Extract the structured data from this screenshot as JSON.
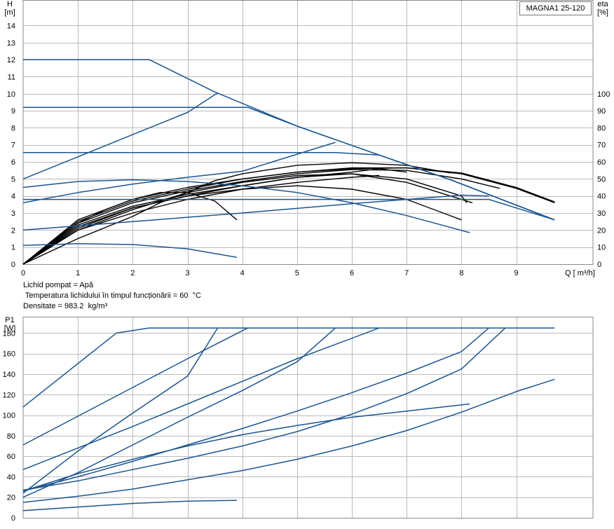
{
  "model": "MAGNA1 25-120",
  "fluid": {
    "line1": "Lichid pompat = Apă",
    "line2": " Temperatura lichidului în timpul funcționării = 60  °C",
    "line3": "Densitate = 983.2  kg/m³"
  },
  "colors": {
    "blue": "#1a5591",
    "black": "#000000",
    "grid": "#bbbbbb",
    "frame": "#8a8a8a"
  },
  "chart_data": [
    {
      "type": "line",
      "title": "MAGNA1 25-120",
      "x_label": "Q [ m³/h]",
      "y_label_left": "H\n[m]",
      "y_label_right": "eta\n[%]",
      "xlim": [
        0,
        10.4
      ],
      "ylim": [
        0,
        15.5
      ],
      "x_ticks": [
        0,
        1,
        2,
        3,
        4,
        5,
        6,
        7,
        8,
        9
      ],
      "y_ticks": [
        0,
        1,
        2,
        3,
        4,
        5,
        6,
        7,
        8,
        9,
        10,
        11,
        12,
        13,
        14
      ],
      "eta_ticks": [
        0,
        10,
        20,
        30,
        40,
        50,
        60,
        70,
        80,
        90,
        100
      ],
      "eta_scale_max_percent": 100,
      "eta_scale_max_height_m": 10,
      "head_series": [
        {
          "points": [
            [
              0,
              12
            ],
            [
              2.3,
              12
            ],
            [
              3.5,
              10.1
            ],
            [
              5.0,
              8.1
            ],
            [
              6.5,
              6.4
            ],
            [
              7.8,
              4.95
            ],
            [
              9.7,
              2.6
            ]
          ]
        },
        {
          "points": [
            [
              0,
              9.2
            ],
            [
              4.1,
              9.2
            ],
            [
              5.0,
              8.1
            ],
            [
              6.5,
              6.4
            ],
            [
              7.8,
              4.95
            ],
            [
              9.7,
              2.6
            ]
          ]
        },
        {
          "points": [
            [
              0,
              6.55
            ],
            [
              5.7,
              6.55
            ],
            [
              6.5,
              6.4
            ],
            [
              7.8,
              4.95
            ],
            [
              9.7,
              2.6
            ]
          ]
        },
        {
          "points": [
            [
              0,
              3.8
            ],
            [
              8.5,
              3.8
            ],
            [
              9.7,
              2.6
            ]
          ]
        },
        {
          "points": [
            [
              0,
              5.0
            ],
            [
              1.0,
              6.3
            ],
            [
              2.0,
              7.6
            ],
            [
              3.0,
              8.9
            ],
            [
              3.55,
              10.05
            ]
          ]
        },
        {
          "points": [
            [
              0,
              4.5
            ],
            [
              1.0,
              4.85
            ],
            [
              2.0,
              4.95
            ],
            [
              3.0,
              4.85
            ],
            [
              4.0,
              4.6
            ],
            [
              5.0,
              4.2
            ],
            [
              6.0,
              3.6
            ],
            [
              7.0,
              2.85
            ],
            [
              8.15,
              1.85
            ]
          ]
        },
        {
          "points": [
            [
              0,
              3.6
            ],
            [
              1.0,
              4.2
            ],
            [
              2.0,
              4.7
            ],
            [
              3.0,
              5.1
            ],
            [
              4.0,
              5.45
            ],
            [
              5.7,
              7.15
            ]
          ]
        },
        {
          "points": [
            [
              0,
              2.0
            ],
            [
              2.0,
              2.5
            ],
            [
              4.0,
              3.0
            ],
            [
              6.0,
              3.55
            ],
            [
              8.0,
              4.05
            ],
            [
              8.5,
              4.0
            ]
          ]
        },
        {
          "points": [
            [
              0,
              1.1
            ],
            [
              1.0,
              1.2
            ],
            [
              2.0,
              1.15
            ],
            [
              3.0,
              0.9
            ],
            [
              3.9,
              0.4
            ]
          ]
        }
      ],
      "efficiency_series": [
        {
          "points": [
            [
              0,
              0
            ],
            [
              1.0,
              26
            ],
            [
              2.0,
              38
            ],
            [
              3.0,
              45
            ],
            [
              4.0,
              50
            ],
            [
              5.0,
              54
            ],
            [
              6.0,
              56.5
            ],
            [
              7.0,
              56.5
            ],
            [
              8.0,
              53.5
            ],
            [
              9.0,
              45
            ],
            [
              9.7,
              36.5
            ]
          ]
        },
        {
          "points": [
            [
              0,
              0
            ],
            [
              1.0,
              25
            ],
            [
              2.0,
              37
            ],
            [
              3.0,
              44
            ],
            [
              4.0,
              50
            ],
            [
              5.0,
              54
            ],
            [
              6.0,
              56
            ],
            [
              7.0,
              56.5
            ],
            [
              8.0,
              53
            ],
            [
              9.0,
              44.5
            ],
            [
              9.7,
              36
            ]
          ]
        },
        {
          "points": [
            [
              0,
              0
            ],
            [
              1.0,
              24
            ],
            [
              2.0,
              36
            ],
            [
              3.0,
              43
            ],
            [
              4.0,
              48.5
            ],
            [
              5.0,
              53
            ],
            [
              6.0,
              55.5
            ],
            [
              7.0,
              55
            ],
            [
              8.0,
              50
            ],
            [
              8.5,
              46
            ],
            [
              8.7,
              44.5
            ]
          ]
        },
        {
          "points": [
            [
              0,
              0
            ],
            [
              1.0,
              23
            ],
            [
              2.0,
              34
            ],
            [
              3.0,
              41
            ],
            [
              4.0,
              46
            ],
            [
              5.0,
              51
            ],
            [
              6.0,
              53
            ],
            [
              7.0,
              48
            ],
            [
              8.0,
              38
            ],
            [
              8.2,
              36
            ]
          ]
        },
        {
          "points": [
            [
              0,
              0
            ],
            [
              1.0,
              22
            ],
            [
              2.0,
              33
            ],
            [
              3.0,
              40
            ],
            [
              4.0,
              46
            ],
            [
              5.0,
              51
            ],
            [
              6.0,
              54
            ],
            [
              6.5,
              56
            ],
            [
              7.0,
              54
            ]
          ]
        },
        {
          "points": [
            [
              0,
              0
            ],
            [
              1.0,
              21
            ],
            [
              2.0,
              33
            ],
            [
              3.0,
              40
            ],
            [
              4.0,
              44
            ],
            [
              5.0,
              46
            ],
            [
              6.0,
              44
            ],
            [
              7.0,
              38
            ],
            [
              8.0,
              26
            ]
          ]
        },
        {
          "points": [
            [
              0,
              0
            ],
            [
              1.0,
              20
            ],
            [
              2.0,
              32
            ],
            [
              3.0,
              42
            ],
            [
              4.0,
              48
            ],
            [
              5.0,
              52
            ],
            [
              6.0,
              53
            ],
            [
              7.0,
              50
            ],
            [
              8.0,
              40
            ],
            [
              8.1,
              36
            ]
          ]
        },
        {
          "points": [
            [
              0,
              0
            ],
            [
              1.0,
              20
            ],
            [
              2.0,
              30
            ],
            [
              3.0,
              38
            ],
            [
              4.0,
              44
            ],
            [
              5.0,
              48
            ],
            [
              6.0,
              51
            ],
            [
              6.5,
              52
            ]
          ]
        },
        {
          "points": [
            [
              0,
              0
            ],
            [
              1.0,
              15
            ],
            [
              2.0,
              28
            ],
            [
              2.5,
              36
            ],
            [
              3.0,
              42
            ],
            [
              3.5,
              49
            ],
            [
              4.0,
              53
            ],
            [
              5.0,
              58
            ],
            [
              6.0,
              59.5
            ],
            [
              7.0,
              58
            ],
            [
              7.8,
              53.5
            ]
          ]
        },
        {
          "points": [
            [
              0,
              0
            ],
            [
              0.5,
              12
            ],
            [
              1.0,
              24
            ],
            [
              1.5,
              32
            ],
            [
              2.0,
              38
            ],
            [
              2.5,
              42
            ],
            [
              3.0,
              42
            ],
            [
              3.5,
              37
            ],
            [
              3.9,
              26
            ]
          ]
        }
      ]
    },
    {
      "type": "line",
      "y_label": "P1\n[W]",
      "xlim": [
        0,
        10.4
      ],
      "ylim": [
        0,
        196
      ],
      "y_ticks": [
        0,
        20,
        40,
        60,
        80,
        100,
        120,
        140,
        160,
        180
      ],
      "x_gridlines": [
        1,
        2,
        3,
        4,
        5,
        6,
        7,
        8,
        9
      ],
      "series": [
        {
          "points": [
            [
              0,
              108
            ],
            [
              1.7,
              180
            ],
            [
              2.3,
              185
            ],
            [
              9.7,
              185
            ]
          ]
        },
        {
          "points": [
            [
              0,
              71
            ],
            [
              1.0,
              99
            ],
            [
              2.0,
              127
            ],
            [
              3.0,
              155
            ],
            [
              4.1,
              185
            ]
          ]
        },
        {
          "points": [
            [
              0,
              24
            ],
            [
              1.0,
              65
            ],
            [
              2.0,
              102
            ],
            [
              3.0,
              138
            ],
            [
              3.55,
              185
            ]
          ]
        },
        {
          "points": [
            [
              0,
              47
            ],
            [
              1.0,
              68
            ],
            [
              2.0,
              89
            ],
            [
              3.0,
              111
            ],
            [
              4.0,
              133
            ],
            [
              5.0,
              155
            ],
            [
              6.5,
              185
            ]
          ]
        },
        {
          "points": [
            [
              0,
              20
            ],
            [
              1.0,
              44
            ],
            [
              2.0,
              71
            ],
            [
              3.0,
              98
            ],
            [
              4.0,
              124
            ],
            [
              5.0,
              152
            ],
            [
              5.7,
              185
            ]
          ]
        },
        {
          "points": [
            [
              0,
              26
            ],
            [
              1.0,
              40
            ],
            [
              2.0,
              55
            ],
            [
              3.0,
              71
            ],
            [
              4.0,
              87
            ],
            [
              5.0,
              104
            ],
            [
              6.0,
              122
            ],
            [
              7.0,
              141
            ],
            [
              8.0,
              162
            ],
            [
              8.5,
              185
            ]
          ]
        },
        {
          "points": [
            [
              0,
              27
            ],
            [
              1.0,
              36
            ],
            [
              2.0,
              47
            ],
            [
              3.0,
              58
            ],
            [
              4.0,
              70
            ],
            [
              5.0,
              84
            ],
            [
              6.0,
              101
            ],
            [
              7.0,
              121
            ],
            [
              8.0,
              145
            ],
            [
              8.8,
              185
            ]
          ]
        },
        {
          "points": [
            [
              0,
              26
            ],
            [
              1.0,
              43
            ],
            [
              2.0,
              57
            ],
            [
              3.0,
              70
            ],
            [
              4.0,
              81
            ],
            [
              5.0,
              90
            ],
            [
              6.0,
              98
            ],
            [
              7.0,
              104
            ],
            [
              8.15,
              111
            ]
          ]
        },
        {
          "points": [
            [
              0,
              15
            ],
            [
              1.0,
              21
            ],
            [
              2.0,
              28
            ],
            [
              3.0,
              37
            ],
            [
              4.0,
              46
            ],
            [
              5.0,
              57
            ],
            [
              6.0,
              70
            ],
            [
              7.0,
              85
            ],
            [
              8.0,
              103
            ],
            [
              9.0,
              123
            ],
            [
              9.7,
              135
            ]
          ]
        },
        {
          "points": [
            [
              0,
              7
            ],
            [
              1.0,
              10.5
            ],
            [
              2.0,
              14
            ],
            [
              3.0,
              16.2
            ],
            [
              3.9,
              17
            ]
          ]
        }
      ]
    }
  ]
}
